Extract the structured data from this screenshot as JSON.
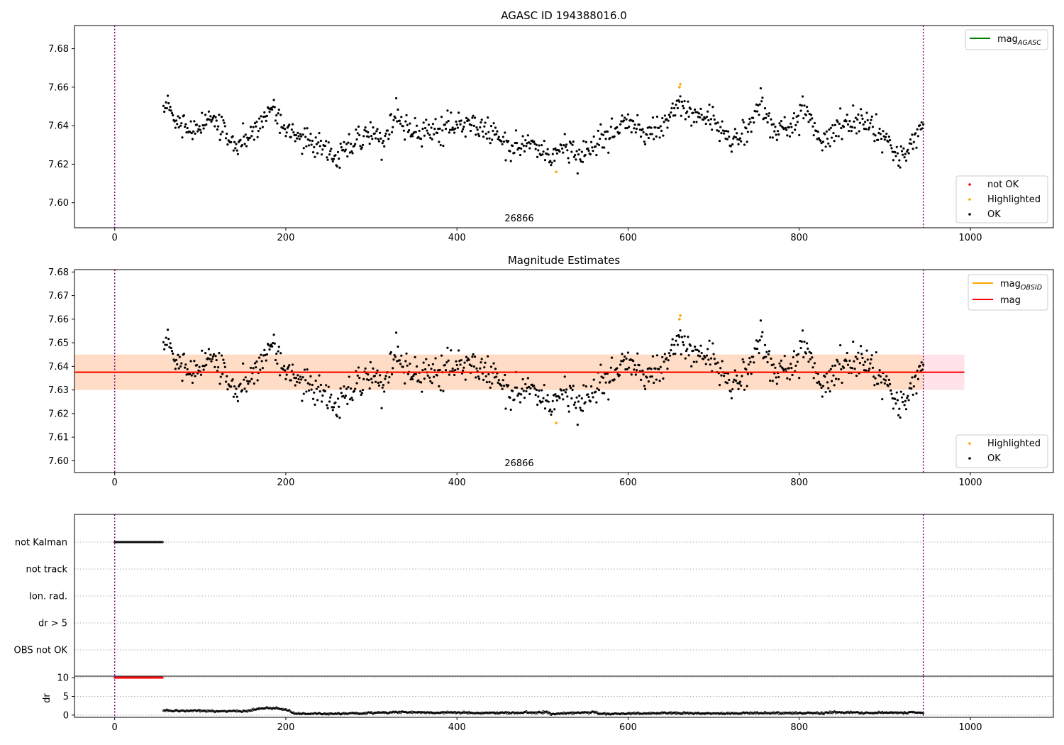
{
  "chart_data": [
    {
      "type": "scatter",
      "title": "AGASC ID 194388016.0",
      "xlabel": "",
      "ylabel": "",
      "xlim": [
        -47,
        1097
      ],
      "ylim": [
        7.587,
        7.692
      ],
      "xticks": [
        0,
        200,
        400,
        600,
        800,
        1000
      ],
      "xtick_labels": [
        "0",
        "200",
        "400",
        "600",
        "800",
        "1000"
      ],
      "yticks": [
        7.6,
        7.62,
        7.64,
        7.66,
        7.68
      ],
      "ytick_labels": [
        "7.60",
        "7.62",
        "7.64",
        "7.66",
        "7.68"
      ],
      "vlines": [
        0,
        945
      ],
      "annotation": {
        "text": "26866",
        "x": 472
      },
      "ok_points": {
        "x_start": 57,
        "x_end": 945,
        "step": 1,
        "y_keypoints": [
          [
            57,
            7.647
          ],
          [
            62,
            7.651
          ],
          [
            68,
            7.645
          ],
          [
            80,
            7.642
          ],
          [
            90,
            7.636
          ],
          [
            100,
            7.643
          ],
          [
            115,
            7.642
          ],
          [
            130,
            7.636
          ],
          [
            145,
            7.63
          ],
          [
            160,
            7.636
          ],
          [
            170,
            7.641
          ],
          [
            182,
            7.651
          ],
          [
            195,
            7.641
          ],
          [
            215,
            7.634
          ],
          [
            240,
            7.63
          ],
          [
            260,
            7.623
          ],
          [
            280,
            7.631
          ],
          [
            300,
            7.637
          ],
          [
            315,
            7.631
          ],
          [
            330,
            7.646
          ],
          [
            345,
            7.636
          ],
          [
            370,
            7.636
          ],
          [
            400,
            7.642
          ],
          [
            420,
            7.639
          ],
          [
            450,
            7.634
          ],
          [
            470,
            7.628
          ],
          [
            490,
            7.632
          ],
          [
            510,
            7.622
          ],
          [
            525,
            7.629
          ],
          [
            545,
            7.623
          ],
          [
            560,
            7.631
          ],
          [
            580,
            7.637
          ],
          [
            600,
            7.642
          ],
          [
            620,
            7.635
          ],
          [
            640,
            7.641
          ],
          [
            660,
            7.652
          ],
          [
            675,
            7.646
          ],
          [
            700,
            7.643
          ],
          [
            720,
            7.633
          ],
          [
            740,
            7.638
          ],
          [
            755,
            7.652
          ],
          [
            770,
            7.637
          ],
          [
            790,
            7.639
          ],
          [
            808,
            7.648
          ],
          [
            825,
            7.631
          ],
          [
            845,
            7.64
          ],
          [
            860,
            7.643
          ],
          [
            875,
            7.642
          ],
          [
            890,
            7.636
          ],
          [
            905,
            7.632
          ],
          [
            918,
            7.624
          ],
          [
            930,
            7.63
          ],
          [
            945,
            7.642
          ]
        ],
        "noise": 0.0045
      },
      "highlighted_points": [
        [
          516,
          7.616
        ],
        [
          660,
          7.66
        ],
        [
          661,
          7.6615
        ]
      ],
      "legends": [
        {
          "position": "upper right",
          "items": [
            {
              "label": "mag",
              "subscript": "AGASC",
              "kind": "line",
              "color": "#008000"
            }
          ]
        },
        {
          "position": "lower right",
          "items": [
            {
              "label": "not OK",
              "kind": "marker",
              "color": "#ff0000"
            },
            {
              "label": "Highlighted",
              "kind": "marker",
              "color": "#ffa500"
            },
            {
              "label": "OK",
              "kind": "marker",
              "color": "#000000"
            }
          ]
        }
      ]
    },
    {
      "type": "scatter",
      "title": "Magnitude Estimates",
      "xlabel": "",
      "ylabel": "",
      "xlim": [
        -47,
        1097
      ],
      "ylim": [
        7.595,
        7.681
      ],
      "xticks": [
        0,
        200,
        400,
        600,
        800,
        1000
      ],
      "xtick_labels": [
        "0",
        "200",
        "400",
        "600",
        "800",
        "1000"
      ],
      "yticks": [
        7.6,
        7.61,
        7.62,
        7.63,
        7.64,
        7.65,
        7.66,
        7.67,
        7.68
      ],
      "ytick_labels": [
        "7.60",
        "7.61",
        "7.62",
        "7.63",
        "7.64",
        "7.65",
        "7.66",
        "7.67",
        "7.68"
      ],
      "vlines": [
        0,
        945
      ],
      "annotation": {
        "text": "26866",
        "x": 472
      },
      "mag_line": {
        "value": 7.6375,
        "x_range": [
          -47,
          993
        ],
        "color": "#ff0000",
        "band": [
          7.63,
          7.645
        ],
        "band_color": "#ffc0cb"
      },
      "mag_obsid_line": {
        "value": 7.6375,
        "x_range": [
          -47,
          945
        ],
        "color": "#ffa500",
        "band": [
          7.63,
          7.645
        ],
        "band_color": "#ffdab9"
      },
      "same_points_as_chart": 0,
      "legends": [
        {
          "position": "upper right",
          "items": [
            {
              "label": "mag",
              "subscript": "OBSID",
              "kind": "line",
              "color": "#ffa500"
            },
            {
              "label": "mag",
              "kind": "line",
              "color": "#ff0000"
            }
          ]
        },
        {
          "position": "lower right",
          "items": [
            {
              "label": "Highlighted",
              "kind": "marker",
              "color": "#ffa500"
            },
            {
              "label": "OK",
              "kind": "marker",
              "color": "#000000"
            }
          ]
        }
      ]
    },
    {
      "type": "scatter",
      "title": "",
      "xlim": [
        -47,
        1097
      ],
      "categories": [
        "not Kalman",
        "not track",
        "Ion. rad.",
        "dr > 5",
        "OBS not OK"
      ],
      "flag_points": [
        {
          "category": "not Kalman",
          "x_range": [
            0,
            56
          ],
          "color": "#000000"
        }
      ],
      "grid": "horizontal dotted",
      "vlines": [
        0,
        945
      ]
    },
    {
      "type": "line",
      "title": "",
      "ylabel": "dr",
      "xlim": [
        -47,
        1097
      ],
      "ylim": [
        -0.6,
        10.4
      ],
      "xticks": [
        0,
        200,
        400,
        600,
        800,
        1000
      ],
      "xtick_labels": [
        "0",
        "200",
        "400",
        "600",
        "800",
        "1000"
      ],
      "yticks": [
        0,
        5,
        10
      ],
      "ytick_labels": [
        "0",
        "5",
        "10"
      ],
      "grid": "horizontal dotted",
      "vlines": [
        0,
        945
      ],
      "capped_points": {
        "x_range": [
          0,
          56
        ],
        "value": 10,
        "color": "#ff0000"
      },
      "dr_keypoints": [
        [
          57,
          1.2
        ],
        [
          100,
          1.1
        ],
        [
          150,
          1.0
        ],
        [
          175,
          1.9
        ],
        [
          190,
          1.8
        ],
        [
          205,
          1.0
        ],
        [
          210,
          0.4
        ],
        [
          260,
          0.3
        ],
        [
          330,
          0.8
        ],
        [
          400,
          0.6
        ],
        [
          460,
          0.6
        ],
        [
          505,
          0.8
        ],
        [
          510,
          0.3
        ],
        [
          560,
          0.8
        ],
        [
          570,
          0.3
        ],
        [
          650,
          0.6
        ],
        [
          700,
          0.4
        ],
        [
          760,
          0.6
        ],
        [
          800,
          0.5
        ],
        [
          850,
          0.7
        ],
        [
          900,
          0.6
        ],
        [
          945,
          0.7
        ]
      ]
    }
  ]
}
